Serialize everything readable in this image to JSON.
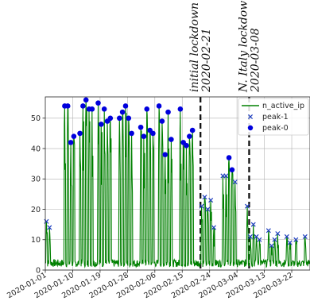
{
  "chart_data": {
    "type": "line",
    "title": "",
    "xlabel": "",
    "ylabel": "",
    "ylim": [
      0,
      57
    ],
    "xlim": [
      "2020-01-01",
      "2020-03-28"
    ],
    "grid": true,
    "legend_placement": "top-right",
    "y_ticks": [
      "0",
      "10",
      "20",
      "30",
      "40",
      "50"
    ],
    "x_ticks": [
      "2020-01-01",
      "2020-01-10",
      "2020-01-19",
      "2020-01-28",
      "2020-02-06",
      "2020-02-15",
      "2020-02-24",
      "2020-03-04",
      "2020-03-13",
      "2020-03-22"
    ],
    "annotations": [
      {
        "date": "2020-02-21",
        "label": "initial lockdown",
        "date_label": "2020-02-21"
      },
      {
        "date": "2020-03-08",
        "label": "N. Italy lockdown",
        "date_label": "2020-03-08"
      }
    ],
    "legend": {
      "line_label": "n_active_ip",
      "peak1_label": "peak-1",
      "peak0_label": "peak-0"
    },
    "colors": {
      "line": "#008000",
      "peak1": "#1f3fbf",
      "peak0": "#0000dd",
      "annotation_line": "#111111"
    },
    "active_spikes": [
      {
        "date": "2020-01-01",
        "value": 16
      },
      {
        "date": "2020-01-02",
        "value": 14
      },
      {
        "date": "2020-01-07",
        "value": 54
      },
      {
        "date": "2020-01-08",
        "value": 54
      },
      {
        "date": "2020-01-09",
        "value": 42
      },
      {
        "date": "2020-01-10",
        "value": 44
      },
      {
        "date": "2020-01-12",
        "value": 45
      },
      {
        "date": "2020-01-13",
        "value": 54
      },
      {
        "date": "2020-01-14",
        "value": 56
      },
      {
        "date": "2020-01-15",
        "value": 53
      },
      {
        "date": "2020-01-16",
        "value": 53
      },
      {
        "date": "2020-01-18",
        "value": 55
      },
      {
        "date": "2020-01-19",
        "value": 48
      },
      {
        "date": "2020-01-20",
        "value": 53
      },
      {
        "date": "2020-01-21",
        "value": 49
      },
      {
        "date": "2020-01-22",
        "value": 50
      },
      {
        "date": "2020-01-25",
        "value": 50
      },
      {
        "date": "2020-01-26",
        "value": 52
      },
      {
        "date": "2020-01-27",
        "value": 54
      },
      {
        "date": "2020-01-28",
        "value": 50
      },
      {
        "date": "2020-01-29",
        "value": 45
      },
      {
        "date": "2020-02-01",
        "value": 47
      },
      {
        "date": "2020-02-02",
        "value": 44
      },
      {
        "date": "2020-02-03",
        "value": 53
      },
      {
        "date": "2020-02-04",
        "value": 46
      },
      {
        "date": "2020-02-05",
        "value": 45
      },
      {
        "date": "2020-02-07",
        "value": 54
      },
      {
        "date": "2020-02-08",
        "value": 49
      },
      {
        "date": "2020-02-09",
        "value": 38
      },
      {
        "date": "2020-02-10",
        "value": 52
      },
      {
        "date": "2020-02-11",
        "value": 43
      },
      {
        "date": "2020-02-14",
        "value": 53
      },
      {
        "date": "2020-02-15",
        "value": 42
      },
      {
        "date": "2020-02-16",
        "value": 41
      },
      {
        "date": "2020-02-17",
        "value": 44
      },
      {
        "date": "2020-02-18",
        "value": 46
      },
      {
        "date": "2020-02-21",
        "value": 21
      },
      {
        "date": "2020-02-22",
        "value": 24
      },
      {
        "date": "2020-02-23",
        "value": 20
      },
      {
        "date": "2020-02-24",
        "value": 23
      },
      {
        "date": "2020-02-25",
        "value": 14
      },
      {
        "date": "2020-02-28",
        "value": 31
      },
      {
        "date": "2020-02-29",
        "value": 31
      },
      {
        "date": "2020-03-01",
        "value": 37
      },
      {
        "date": "2020-03-02",
        "value": 33
      },
      {
        "date": "2020-03-03",
        "value": 29
      },
      {
        "date": "2020-03-07",
        "value": 21
      },
      {
        "date": "2020-03-08",
        "value": 11
      },
      {
        "date": "2020-03-09",
        "value": 15
      },
      {
        "date": "2020-03-10",
        "value": 11
      },
      {
        "date": "2020-03-11",
        "value": 10
      },
      {
        "date": "2020-03-14",
        "value": 13
      },
      {
        "date": "2020-03-15",
        "value": 8
      },
      {
        "date": "2020-03-16",
        "value": 10
      },
      {
        "date": "2020-03-17",
        "value": 12
      },
      {
        "date": "2020-03-20",
        "value": 11
      },
      {
        "date": "2020-03-21",
        "value": 9
      },
      {
        "date": "2020-03-23",
        "value": 10
      },
      {
        "date": "2020-03-26",
        "value": 11
      }
    ],
    "peak_1": [
      {
        "date": "2020-01-01",
        "value": 16
      },
      {
        "date": "2020-01-02",
        "value": 14
      },
      {
        "date": "2020-02-21",
        "value": 21
      },
      {
        "date": "2020-02-22",
        "value": 24
      },
      {
        "date": "2020-02-23",
        "value": 20
      },
      {
        "date": "2020-02-24",
        "value": 23
      },
      {
        "date": "2020-02-25",
        "value": 14
      },
      {
        "date": "2020-02-28",
        "value": 31
      },
      {
        "date": "2020-02-29",
        "value": 31
      },
      {
        "date": "2020-03-03",
        "value": 29
      },
      {
        "date": "2020-03-07",
        "value": 21
      },
      {
        "date": "2020-03-08",
        "value": 11
      },
      {
        "date": "2020-03-09",
        "value": 15
      },
      {
        "date": "2020-03-10",
        "value": 11
      },
      {
        "date": "2020-03-11",
        "value": 10
      },
      {
        "date": "2020-03-14",
        "value": 13
      },
      {
        "date": "2020-03-15",
        "value": 8
      },
      {
        "date": "2020-03-16",
        "value": 10
      },
      {
        "date": "2020-03-17",
        "value": 12
      },
      {
        "date": "2020-03-20",
        "value": 11
      },
      {
        "date": "2020-03-21",
        "value": 9
      },
      {
        "date": "2020-03-23",
        "value": 10
      },
      {
        "date": "2020-03-26",
        "value": 11
      }
    ],
    "peak_0": [
      {
        "date": "2020-01-07",
        "value": 54
      },
      {
        "date": "2020-01-08",
        "value": 54
      },
      {
        "date": "2020-01-09",
        "value": 42
      },
      {
        "date": "2020-01-10",
        "value": 44
      },
      {
        "date": "2020-01-12",
        "value": 45
      },
      {
        "date": "2020-01-13",
        "value": 54
      },
      {
        "date": "2020-01-14",
        "value": 56
      },
      {
        "date": "2020-01-15",
        "value": 53
      },
      {
        "date": "2020-01-16",
        "value": 53
      },
      {
        "date": "2020-01-18",
        "value": 55
      },
      {
        "date": "2020-01-19",
        "value": 48
      },
      {
        "date": "2020-01-20",
        "value": 53
      },
      {
        "date": "2020-01-21",
        "value": 49
      },
      {
        "date": "2020-01-22",
        "value": 50
      },
      {
        "date": "2020-01-25",
        "value": 50
      },
      {
        "date": "2020-01-26",
        "value": 52
      },
      {
        "date": "2020-01-27",
        "value": 54
      },
      {
        "date": "2020-01-28",
        "value": 50
      },
      {
        "date": "2020-01-29",
        "value": 45
      },
      {
        "date": "2020-02-01",
        "value": 47
      },
      {
        "date": "2020-02-02",
        "value": 44
      },
      {
        "date": "2020-02-03",
        "value": 53
      },
      {
        "date": "2020-02-04",
        "value": 46
      },
      {
        "date": "2020-02-05",
        "value": 45
      },
      {
        "date": "2020-02-07",
        "value": 54
      },
      {
        "date": "2020-02-08",
        "value": 49
      },
      {
        "date": "2020-02-09",
        "value": 38
      },
      {
        "date": "2020-02-10",
        "value": 52
      },
      {
        "date": "2020-02-11",
        "value": 43
      },
      {
        "date": "2020-02-14",
        "value": 53
      },
      {
        "date": "2020-02-15",
        "value": 42
      },
      {
        "date": "2020-02-16",
        "value": 41
      },
      {
        "date": "2020-02-17",
        "value": 44
      },
      {
        "date": "2020-02-18",
        "value": 46
      },
      {
        "date": "2020-03-01",
        "value": 37
      },
      {
        "date": "2020-03-02",
        "value": 33
      }
    ]
  }
}
